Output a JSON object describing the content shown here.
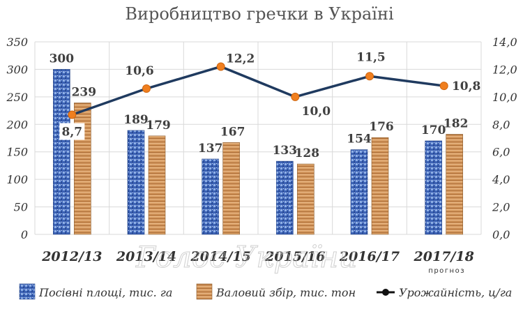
{
  "chart_data": {
    "type": "bar",
    "title": "Виробництво гречки в Україні",
    "categories": [
      "2012/13",
      "2013/14",
      "2014/15",
      "2015/16",
      "2016/17",
      "2017/18"
    ],
    "category_notes": [
      "",
      "",
      "",
      "",
      "",
      "прогноз"
    ],
    "series": [
      {
        "name": "Посівні площі, тис. га",
        "type": "bar",
        "axis": "left",
        "color": "#3a5fb0",
        "values": [
          300,
          189,
          137,
          133,
          154,
          170
        ],
        "labels": [
          "300",
          "189",
          "137",
          "133",
          "154",
          "170"
        ]
      },
      {
        "name": "Валовий збір, тис. тон",
        "type": "bar",
        "axis": "left",
        "color": "#c98a4e",
        "values": [
          239,
          179,
          167,
          128,
          176,
          182
        ],
        "labels": [
          "239",
          "179",
          "167",
          "128",
          "176",
          "182"
        ]
      },
      {
        "name": "Урожайність, ц/га",
        "type": "line",
        "axis": "right",
        "color": "#1f3a5f",
        "marker_color": "#f07f1f",
        "values": [
          8.7,
          10.6,
          12.2,
          10.0,
          11.5,
          10.8
        ],
        "labels": [
          "8,7",
          "10,6",
          "12,2",
          "10,0",
          "11,5",
          "10,8"
        ]
      }
    ],
    "y_left": {
      "ylim": [
        0,
        350
      ],
      "ticks": [
        0,
        50,
        100,
        150,
        200,
        250,
        300,
        350
      ],
      "tick_labels": [
        "0",
        "50",
        "100",
        "150",
        "200",
        "250",
        "300",
        "350"
      ]
    },
    "y_right": {
      "ylim": [
        0,
        14
      ],
      "ticks": [
        0,
        2,
        4,
        6,
        8,
        10,
        12,
        14
      ],
      "tick_labels": [
        "0,0",
        "2,0",
        "4,0",
        "6,0",
        "8,0",
        "10,0",
        "12,0",
        "14,0"
      ]
    },
    "grid": true,
    "legend_position": "bottom",
    "watermark": "Голос України"
  }
}
